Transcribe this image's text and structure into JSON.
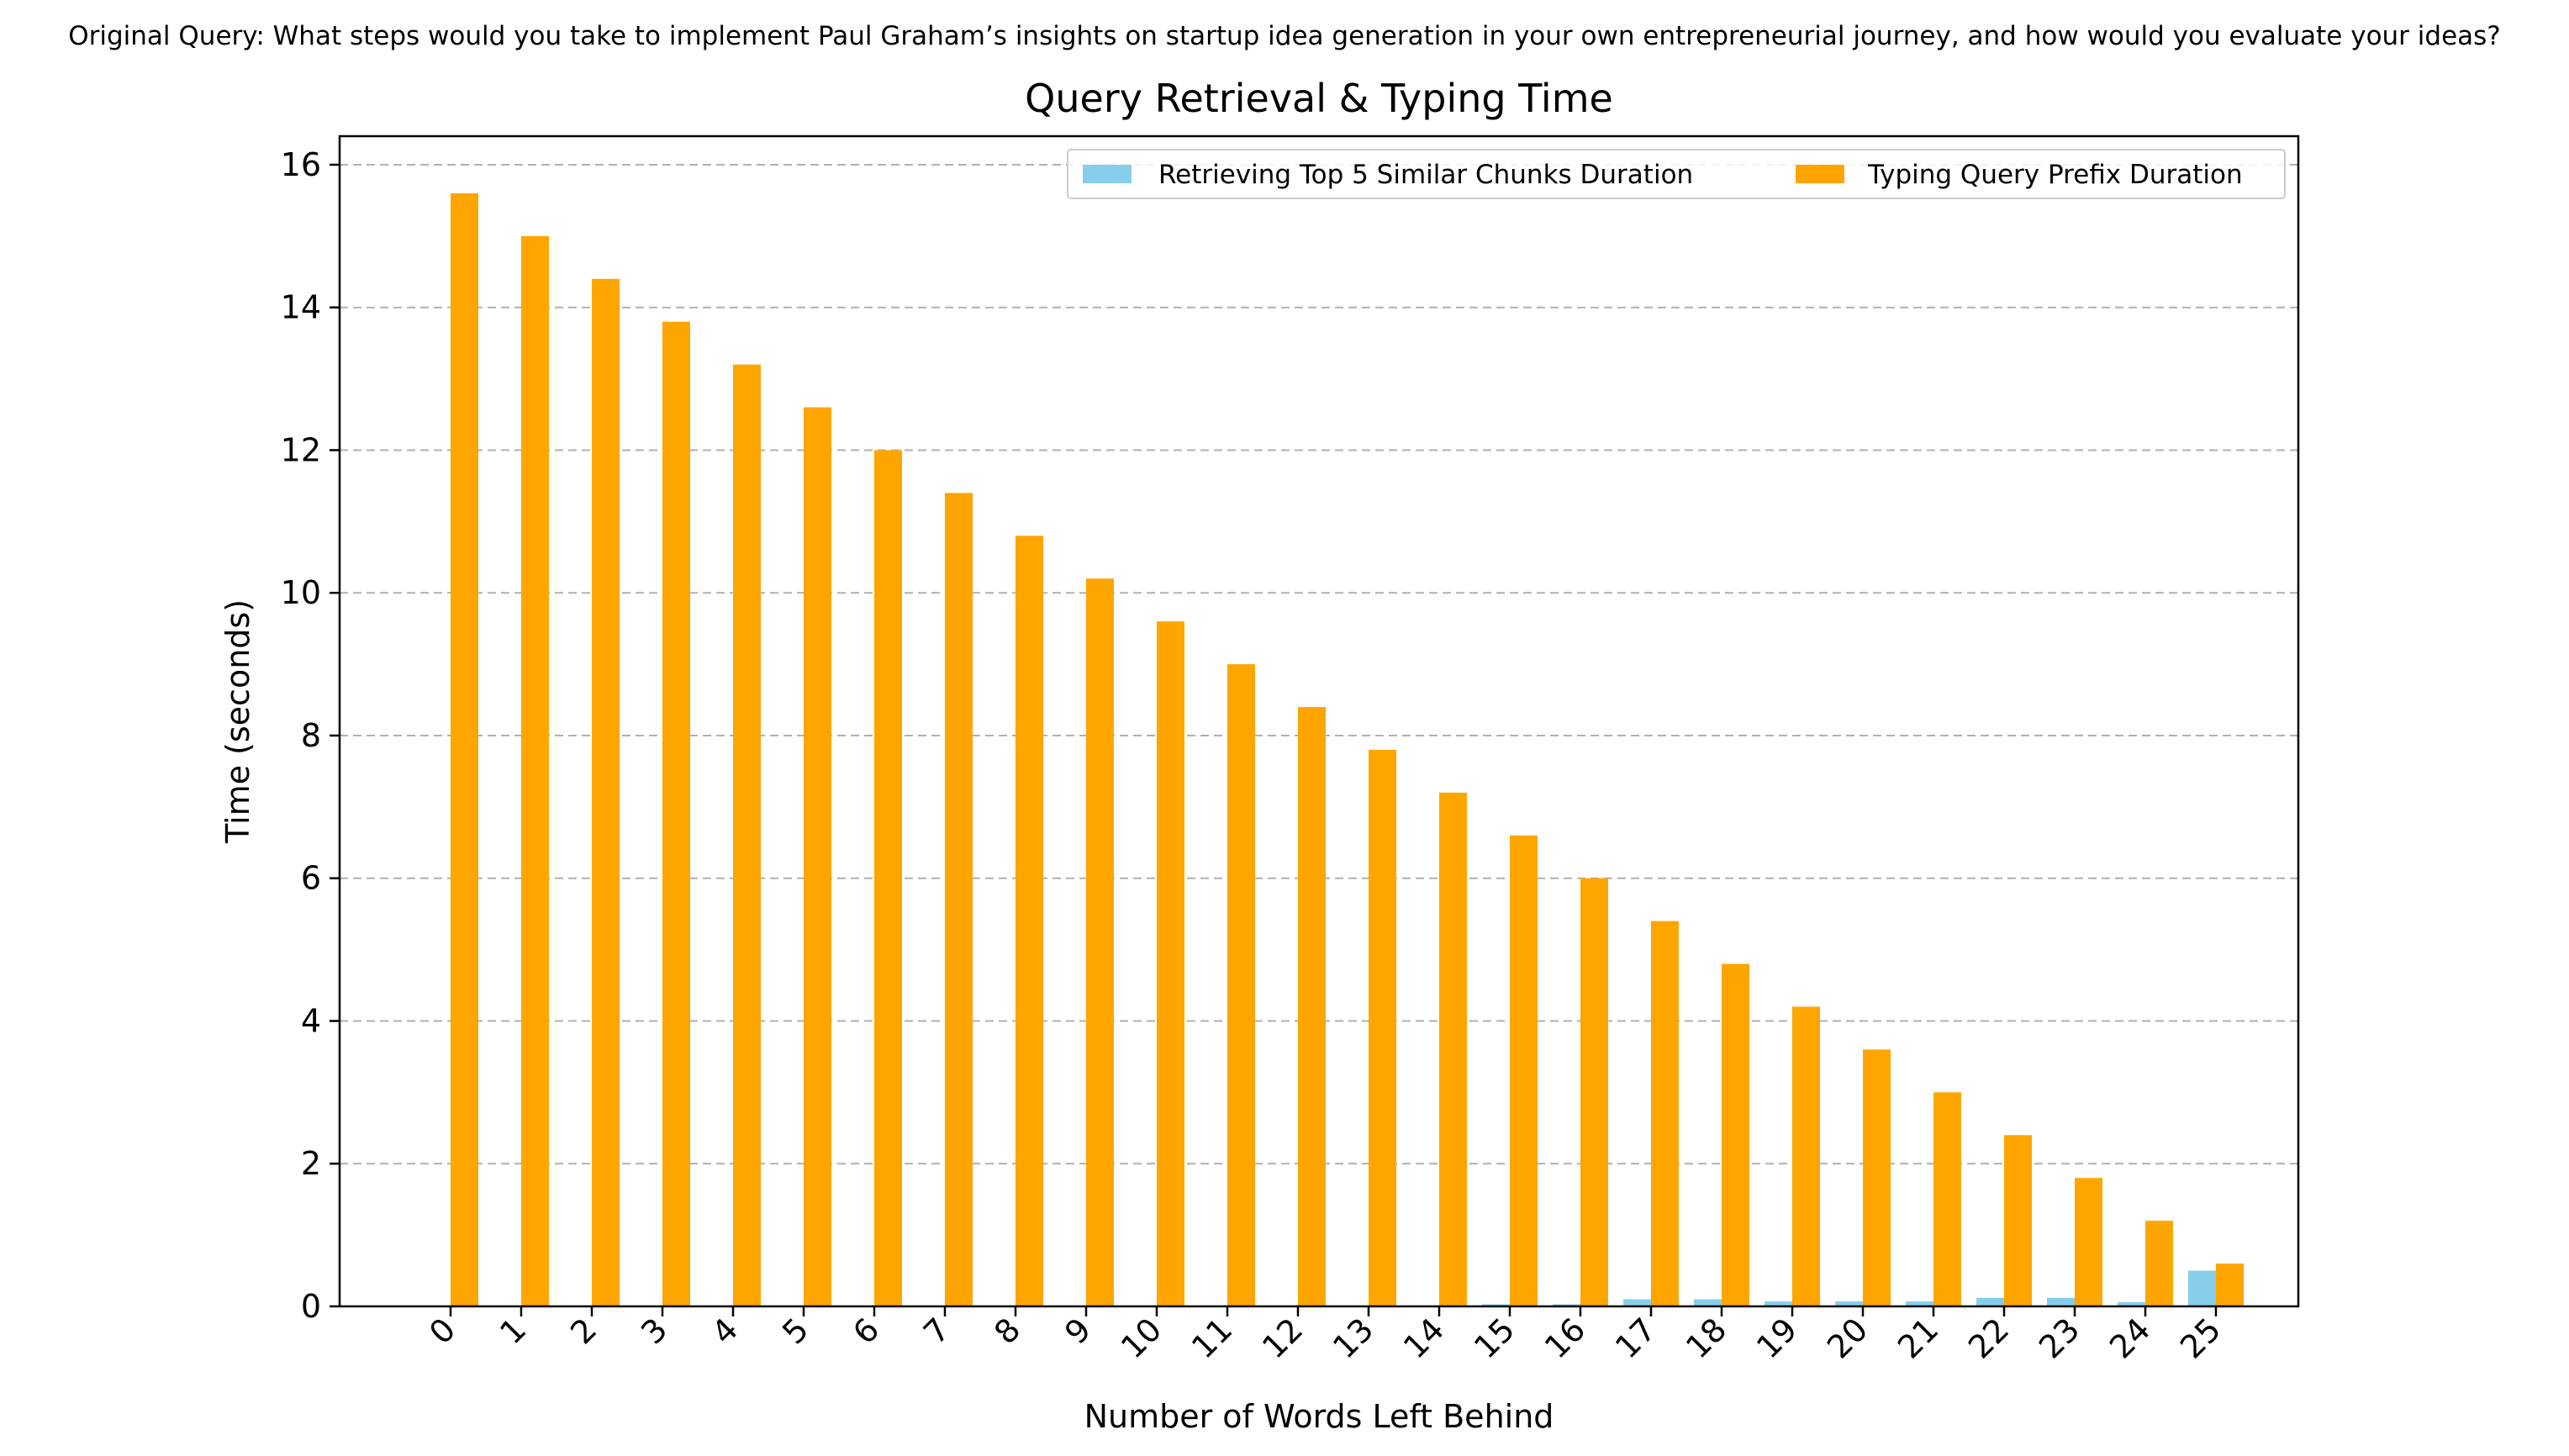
{
  "suptitle": "Original Query: What steps would you take to implement Paul Graham’s insights on startup idea generation in your own entrepreneurial journey, and how would you evaluate your ideas?",
  "colors": {
    "retrieval": "#87ceeb",
    "typing": "#ffa500",
    "grid": "#b0b0b0",
    "axis": "#000000"
  },
  "chart_data": {
    "type": "bar",
    "title": "Query Retrieval & Typing Time",
    "xlabel": "Number of Words Left Behind",
    "ylabel": "Time (seconds)",
    "categories": [
      "0",
      "1",
      "2",
      "3",
      "4",
      "5",
      "6",
      "7",
      "8",
      "9",
      "10",
      "11",
      "12",
      "13",
      "14",
      "15",
      "16",
      "17",
      "18",
      "19",
      "20",
      "21",
      "22",
      "23",
      "24",
      "25"
    ],
    "ylim": [
      0,
      16.4
    ],
    "yticks": [
      0,
      2,
      4,
      6,
      8,
      10,
      12,
      14,
      16
    ],
    "grid": "y-dashed",
    "legend_position": "top-right",
    "series": [
      {
        "name": "Retrieving Top 5 Similar Chunks Duration",
        "values": [
          0,
          0,
          0,
          0,
          0,
          0,
          0,
          0,
          0,
          0,
          0,
          0,
          0,
          0,
          0,
          0.03,
          0.03,
          0.1,
          0.1,
          0.07,
          0.07,
          0.07,
          0.12,
          0.12,
          0.06,
          0.5
        ]
      },
      {
        "name": "Typing Query Prefix Duration",
        "values": [
          15.6,
          15.0,
          14.4,
          13.8,
          13.2,
          12.6,
          12.0,
          11.4,
          10.8,
          10.2,
          9.6,
          9.0,
          8.4,
          7.8,
          7.2,
          6.6,
          6.0,
          5.4,
          4.8,
          4.2,
          3.6,
          3.0,
          2.4,
          1.8,
          1.2,
          0.6
        ]
      }
    ]
  }
}
